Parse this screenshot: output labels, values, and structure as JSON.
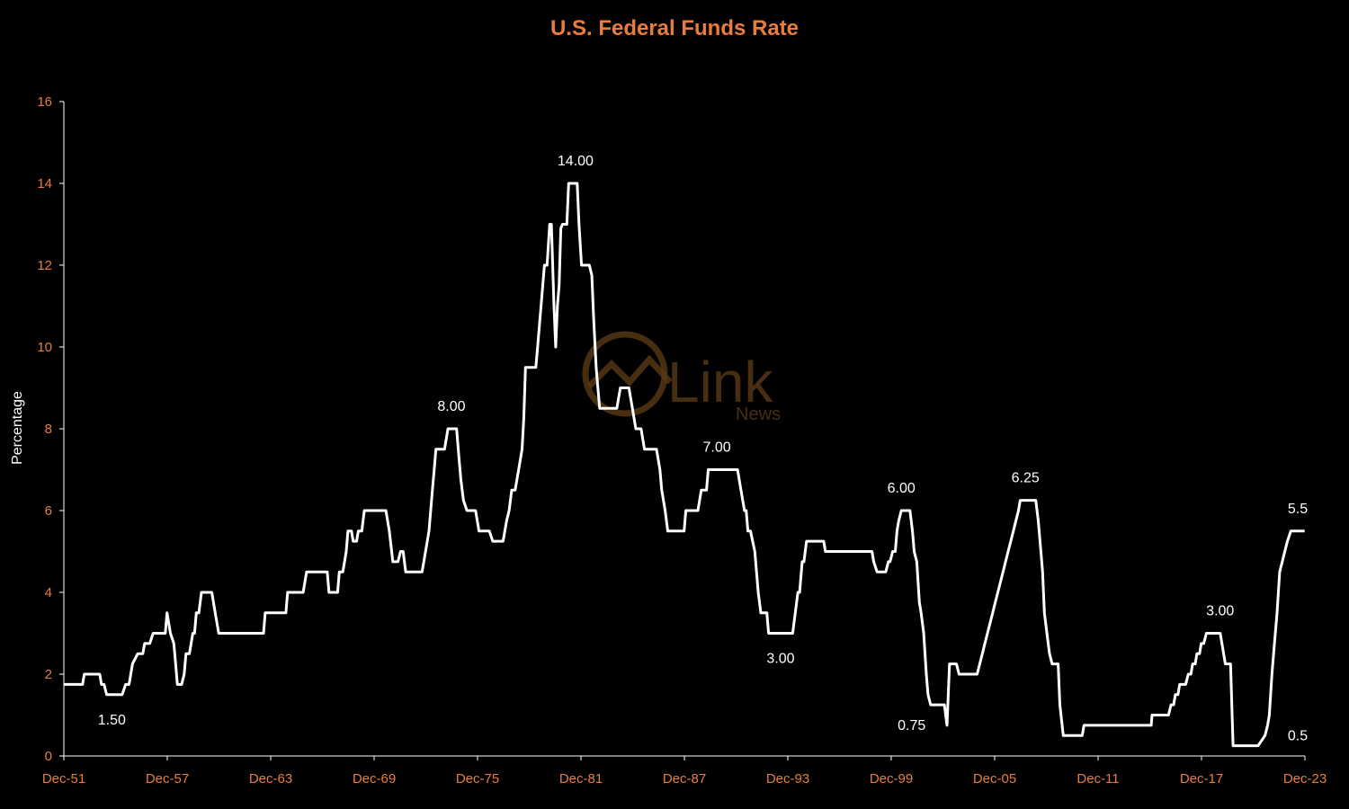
{
  "colors": {
    "background": "#000000",
    "title": "#e87d3e",
    "tick_label": "#e87d3e",
    "line": "#ffffff",
    "annotation": "#ffffff",
    "axis": "#ffffff",
    "ylabel": "#ffffff",
    "watermark": "#5a3a14"
  },
  "watermark": {
    "name": "Link",
    "sub": "News"
  },
  "chart_data": {
    "type": "line",
    "title": "U.S. Federal Funds Rate",
    "xlabel": "",
    "ylabel": "Percentage",
    "xlim": [
      1951.917,
      2023.917
    ],
    "ylim": [
      0,
      16
    ],
    "yticks": [
      0,
      2,
      4,
      6,
      8,
      10,
      12,
      14,
      16
    ],
    "xticks": [
      {
        "x": 1951.917,
        "label": "Dec-51"
      },
      {
        "x": 1957.917,
        "label": "Dec-57"
      },
      {
        "x": 1963.917,
        "label": "Dec-63"
      },
      {
        "x": 1969.917,
        "label": "Dec-69"
      },
      {
        "x": 1975.917,
        "label": "Dec-75"
      },
      {
        "x": 1981.917,
        "label": "Dec-81"
      },
      {
        "x": 1987.917,
        "label": "Dec-87"
      },
      {
        "x": 1993.917,
        "label": "Dec-93"
      },
      {
        "x": 1999.917,
        "label": "Dec-99"
      },
      {
        "x": 2005.917,
        "label": "Dec-05"
      },
      {
        "x": 2011.917,
        "label": "Dec-11"
      },
      {
        "x": 2017.917,
        "label": "Dec-17"
      },
      {
        "x": 2023.917,
        "label": "Dec-23"
      }
    ],
    "grid": false,
    "series": [
      {
        "points": [
          [
            1951.92,
            1.75
          ],
          [
            1953.0,
            1.75
          ],
          [
            1953.1,
            2.0
          ],
          [
            1954.0,
            2.0
          ],
          [
            1954.1,
            1.75
          ],
          [
            1954.25,
            1.75
          ],
          [
            1954.4,
            1.5
          ],
          [
            1955.3,
            1.5
          ],
          [
            1955.5,
            1.75
          ],
          [
            1955.7,
            1.75
          ],
          [
            1955.9,
            2.25
          ],
          [
            1956.2,
            2.5
          ],
          [
            1956.5,
            2.5
          ],
          [
            1956.6,
            2.75
          ],
          [
            1956.9,
            2.75
          ],
          [
            1957.1,
            3.0
          ],
          [
            1957.8,
            3.0
          ],
          [
            1957.9,
            3.5
          ],
          [
            1958.1,
            3.0
          ],
          [
            1958.3,
            2.75
          ],
          [
            1958.4,
            2.25
          ],
          [
            1958.5,
            1.75
          ],
          [
            1958.75,
            1.75
          ],
          [
            1958.9,
            2.0
          ],
          [
            1959.0,
            2.5
          ],
          [
            1959.2,
            2.5
          ],
          [
            1959.3,
            2.75
          ],
          [
            1959.4,
            3.0
          ],
          [
            1959.5,
            3.0
          ],
          [
            1959.6,
            3.5
          ],
          [
            1959.75,
            3.5
          ],
          [
            1959.9,
            4.0
          ],
          [
            1960.5,
            4.0
          ],
          [
            1960.7,
            3.5
          ],
          [
            1960.9,
            3.0
          ],
          [
            1963.5,
            3.0
          ],
          [
            1963.6,
            3.5
          ],
          [
            1964.8,
            3.5
          ],
          [
            1964.9,
            4.0
          ],
          [
            1965.8,
            4.0
          ],
          [
            1966.0,
            4.5
          ],
          [
            1967.2,
            4.5
          ],
          [
            1967.3,
            4.0
          ],
          [
            1967.8,
            4.0
          ],
          [
            1967.9,
            4.5
          ],
          [
            1968.1,
            4.5
          ],
          [
            1968.3,
            5.0
          ],
          [
            1968.4,
            5.5
          ],
          [
            1968.6,
            5.5
          ],
          [
            1968.7,
            5.25
          ],
          [
            1968.9,
            5.25
          ],
          [
            1969.0,
            5.5
          ],
          [
            1969.2,
            5.5
          ],
          [
            1969.35,
            6.0
          ],
          [
            1970.6,
            6.0
          ],
          [
            1970.8,
            5.5
          ],
          [
            1971.0,
            4.75
          ],
          [
            1971.3,
            4.75
          ],
          [
            1971.45,
            5.0
          ],
          [
            1971.6,
            5.0
          ],
          [
            1971.75,
            4.5
          ],
          [
            1972.7,
            4.5
          ],
          [
            1972.9,
            5.0
          ],
          [
            1973.1,
            5.5
          ],
          [
            1973.2,
            6.0
          ],
          [
            1973.3,
            6.5
          ],
          [
            1973.4,
            7.0
          ],
          [
            1973.5,
            7.5
          ],
          [
            1974.0,
            7.5
          ],
          [
            1974.2,
            8.0
          ],
          [
            1974.7,
            8.0
          ],
          [
            1974.85,
            7.25
          ],
          [
            1974.95,
            6.75
          ],
          [
            1975.1,
            6.25
          ],
          [
            1975.3,
            6.0
          ],
          [
            1975.8,
            6.0
          ],
          [
            1976.0,
            5.5
          ],
          [
            1976.6,
            5.5
          ],
          [
            1976.8,
            5.25
          ],
          [
            1977.4,
            5.25
          ],
          [
            1977.6,
            5.75
          ],
          [
            1977.75,
            6.0
          ],
          [
            1977.9,
            6.5
          ],
          [
            1978.1,
            6.5
          ],
          [
            1978.3,
            7.0
          ],
          [
            1978.5,
            7.5
          ],
          [
            1978.6,
            8.25
          ],
          [
            1978.7,
            9.5
          ],
          [
            1979.3,
            9.5
          ],
          [
            1979.4,
            10.0
          ],
          [
            1979.6,
            11.0
          ],
          [
            1979.8,
            12.0
          ],
          [
            1979.95,
            12.0
          ],
          [
            1980.1,
            13.0
          ],
          [
            1980.2,
            13.0
          ],
          [
            1980.35,
            11.0
          ],
          [
            1980.45,
            10.0
          ],
          [
            1980.55,
            11.0
          ],
          [
            1980.65,
            11.5
          ],
          [
            1980.75,
            12.9
          ],
          [
            1980.85,
            13.0
          ],
          [
            1981.1,
            13.0
          ],
          [
            1981.2,
            14.0
          ],
          [
            1981.7,
            14.0
          ],
          [
            1981.8,
            13.0
          ],
          [
            1981.95,
            12.0
          ],
          [
            1982.4,
            12.0
          ],
          [
            1982.55,
            11.75
          ],
          [
            1982.65,
            10.75
          ],
          [
            1982.8,
            9.5
          ],
          [
            1982.9,
            9.0
          ],
          [
            1983.0,
            8.5
          ],
          [
            1984.0,
            8.5
          ],
          [
            1984.2,
            9.0
          ],
          [
            1984.7,
            9.0
          ],
          [
            1984.9,
            8.5
          ],
          [
            1985.1,
            8.0
          ],
          [
            1985.4,
            8.0
          ],
          [
            1985.6,
            7.5
          ],
          [
            1986.3,
            7.5
          ],
          [
            1986.5,
            7.0
          ],
          [
            1986.6,
            6.5
          ],
          [
            1986.8,
            6.0
          ],
          [
            1986.95,
            5.5
          ],
          [
            1987.9,
            5.5
          ],
          [
            1988.0,
            6.0
          ],
          [
            1988.7,
            6.0
          ],
          [
            1988.9,
            6.5
          ],
          [
            1989.2,
            6.5
          ],
          [
            1989.3,
            7.0
          ],
          [
            1991.0,
            7.0
          ],
          [
            1991.2,
            6.5
          ],
          [
            1991.4,
            6.0
          ],
          [
            1991.5,
            6.0
          ],
          [
            1991.6,
            5.5
          ],
          [
            1991.75,
            5.5
          ],
          [
            1992.0,
            5.0
          ],
          [
            1992.1,
            4.5
          ],
          [
            1992.2,
            4.0
          ],
          [
            1992.35,
            3.5
          ],
          [
            1992.7,
            3.5
          ],
          [
            1992.8,
            3.0
          ],
          [
            1994.2,
            3.0
          ],
          [
            1994.35,
            3.5
          ],
          [
            1994.5,
            4.0
          ],
          [
            1994.6,
            4.0
          ],
          [
            1994.75,
            4.75
          ],
          [
            1994.85,
            4.75
          ],
          [
            1995.0,
            5.25
          ],
          [
            1996.0,
            5.25
          ],
          [
            1996.1,
            5.0
          ],
          [
            1998.8,
            5.0
          ],
          [
            1998.9,
            4.75
          ],
          [
            1999.1,
            4.5
          ],
          [
            1999.6,
            4.5
          ],
          [
            1999.75,
            4.75
          ],
          [
            1999.85,
            4.75
          ],
          [
            2000.0,
            5.0
          ],
          [
            2000.15,
            5.0
          ],
          [
            2000.25,
            5.5
          ],
          [
            2000.35,
            5.75
          ],
          [
            2000.5,
            6.0
          ],
          [
            2001.0,
            6.0
          ],
          [
            2001.15,
            5.5
          ],
          [
            2001.25,
            5.0
          ],
          [
            2001.4,
            4.75
          ],
          [
            2001.55,
            3.75
          ],
          [
            2001.65,
            3.5
          ],
          [
            2001.8,
            3.0
          ],
          [
            2001.95,
            2.0
          ],
          [
            2002.05,
            1.5
          ],
          [
            2002.2,
            1.25
          ],
          [
            2003.0,
            1.25
          ],
          [
            2003.15,
            0.75
          ],
          [
            2003.3,
            2.25
          ],
          [
            2003.7,
            2.25
          ],
          [
            2003.85,
            2.0
          ],
          [
            2004.9,
            2.0
          ],
          [
            2005.05,
            2.25
          ],
          [
            2005.2,
            2.5
          ],
          [
            2005.35,
            2.75
          ],
          [
            2005.5,
            3.0
          ],
          [
            2005.65,
            3.25
          ],
          [
            2005.8,
            3.5
          ],
          [
            2005.95,
            3.75
          ],
          [
            2006.1,
            4.0
          ],
          [
            2006.25,
            4.25
          ],
          [
            2006.4,
            4.5
          ],
          [
            2006.55,
            4.75
          ],
          [
            2006.7,
            5.0
          ],
          [
            2006.85,
            5.25
          ],
          [
            2007.0,
            5.5
          ],
          [
            2007.15,
            5.75
          ],
          [
            2007.3,
            6.0
          ],
          [
            2007.4,
            6.25
          ],
          [
            2008.3,
            6.25
          ],
          [
            2008.45,
            5.75
          ],
          [
            2008.6,
            5.0
          ],
          [
            2008.7,
            4.5
          ],
          [
            2008.8,
            3.5
          ],
          [
            2008.95,
            3.0
          ],
          [
            2009.1,
            2.5
          ],
          [
            2009.25,
            2.25
          ],
          [
            2009.6,
            2.25
          ],
          [
            2009.7,
            1.25
          ],
          [
            2009.9,
            0.5
          ],
          [
            2011.0,
            0.5
          ],
          [
            2011.1,
            0.75
          ],
          [
            2015.0,
            0.75
          ],
          [
            2015.05,
            1.0
          ],
          [
            2016.0,
            1.0
          ],
          [
            2016.15,
            1.25
          ],
          [
            2016.3,
            1.25
          ],
          [
            2016.4,
            1.5
          ],
          [
            2016.55,
            1.5
          ],
          [
            2016.65,
            1.75
          ],
          [
            2017.0,
            1.75
          ],
          [
            2017.15,
            2.0
          ],
          [
            2017.3,
            2.0
          ],
          [
            2017.4,
            2.25
          ],
          [
            2017.55,
            2.25
          ],
          [
            2017.65,
            2.5
          ],
          [
            2017.8,
            2.5
          ],
          [
            2017.9,
            2.75
          ],
          [
            2018.05,
            2.75
          ],
          [
            2018.2,
            3.0
          ],
          [
            2019.0,
            3.0
          ],
          [
            2019.2,
            2.5
          ],
          [
            2019.3,
            2.25
          ],
          [
            2019.6,
            2.25
          ],
          [
            2019.75,
            0.25
          ],
          [
            2021.2,
            0.25
          ],
          [
            2021.6,
            0.5
          ],
          [
            2021.75,
            0.75
          ],
          [
            2021.85,
            1.0
          ],
          [
            2022.0,
            2.0
          ],
          [
            2022.15,
            2.75
          ],
          [
            2022.3,
            3.5
          ],
          [
            2022.45,
            4.5
          ],
          [
            2022.6,
            4.75
          ],
          [
            2022.75,
            5.0
          ],
          [
            2022.9,
            5.25
          ],
          [
            2023.1,
            5.5
          ],
          [
            2023.9,
            5.5
          ]
        ]
      }
    ],
    "annotations": [
      {
        "x": 1954.7,
        "y": 1.5,
        "text": "1.50",
        "pos": "below"
      },
      {
        "x": 1974.4,
        "y": 8.0,
        "text": "8.00",
        "pos": "above"
      },
      {
        "x": 1981.6,
        "y": 14.0,
        "text": "14.00",
        "pos": "above"
      },
      {
        "x": 1989.8,
        "y": 7.0,
        "text": "7.00",
        "pos": "above"
      },
      {
        "x": 1993.5,
        "y": 3.0,
        "text": "3.00",
        "pos": "below"
      },
      {
        "x": 2000.5,
        "y": 6.0,
        "text": "6.00",
        "pos": "above"
      },
      {
        "x": 2001.1,
        "y": 0.75,
        "text": "0.75",
        "pos": "level"
      },
      {
        "x": 2007.7,
        "y": 6.25,
        "text": "6.25",
        "pos": "above"
      },
      {
        "x": 2019.0,
        "y": 3.0,
        "text": "3.00",
        "pos": "above"
      },
      {
        "x": 2023.5,
        "y": 5.5,
        "text": "5.5",
        "pos": "above"
      },
      {
        "x": 2023.5,
        "y": 0.5,
        "text": "0.5",
        "pos": "level"
      }
    ]
  }
}
